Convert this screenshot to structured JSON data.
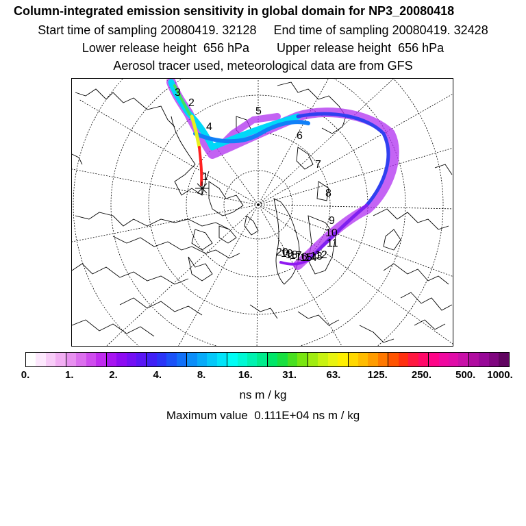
{
  "header": {
    "title": "Column-integrated emission sensitivity in global domain for NP3_20080418",
    "line2": "Start time of sampling 20080419. 32128     End time of sampling 20080419. 32428",
    "line3": "Lower release height  656 hPa        Upper release height  656 hPa",
    "line4": "Aerosol tracer used, meteorological data are from GFS"
  },
  "trajectory_labels": [
    "1",
    "2",
    "3",
    "4",
    "5",
    "6",
    "7",
    "8",
    "9",
    "10",
    "11",
    "12",
    "13",
    "14",
    "15",
    "16",
    "17",
    "18",
    "19",
    "20"
  ],
  "colorbar": {
    "ticks": [
      "0.",
      "1.",
      "2.",
      "4.",
      "8.",
      "16.",
      "31.",
      "63.",
      "125.",
      "250.",
      "500.",
      "1000."
    ],
    "colors": [
      "#ffffff",
      "#fde8fd",
      "#f8ccf8",
      "#f2aef3",
      "#e890f0",
      "#dc6fee",
      "#cf4cee",
      "#c02bef",
      "#a815f1",
      "#8e0cf2",
      "#7410f4",
      "#5a16f5",
      "#4020f6",
      "#2a35f7",
      "#1b52f8",
      "#1170f9",
      "#0c8ef9",
      "#08abf9",
      "#05c8f9",
      "#02e4f9",
      "#00fdf5",
      "#00f8d4",
      "#00f2b0",
      "#00ec8c",
      "#00e668",
      "#18e040",
      "#48e020",
      "#78e610",
      "#a0ec10",
      "#c8f210",
      "#e8f410",
      "#fff000",
      "#ffd800",
      "#ffbc00",
      "#ff9c00",
      "#ff7800",
      "#ff5400",
      "#ff3010",
      "#ff1840",
      "#ff0868",
      "#ff0488",
      "#f008a0",
      "#e00ca8",
      "#c810a8",
      "#b00ca0",
      "#980898",
      "#800680",
      "#600460"
    ],
    "unit": "ns m / kg"
  },
  "max_value_text": "Maximum value  0.111E+04 ns m / kg",
  "colors": {
    "plume_core": "#ff2020",
    "plume_mid": "#00e8f8",
    "plume_outer": "#a020f0"
  }
}
